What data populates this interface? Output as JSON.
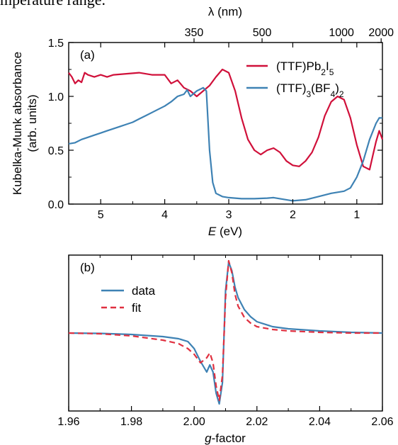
{
  "caption": "mperature range.",
  "chart_data": [
    {
      "panel": "(a)",
      "type": "line",
      "xlabel_var": "E",
      "xlabel_unit": " (eV)",
      "ylabel_line1": "Kubelka-Munk absorbance",
      "ylabel_line2": "(arb. units)",
      "top_axis_label": "λ (nm)",
      "xlim": [
        5.5,
        0.6
      ],
      "ylim": [
        0,
        1.5
      ],
      "x_ticks": [
        5,
        4,
        3,
        2,
        1
      ],
      "y_ticks": [
        "0.0",
        "0.5",
        "1.0",
        "1.5"
      ],
      "top_ticks": [
        350,
        500,
        1000,
        2000
      ],
      "legend_position": "top-right",
      "legend": [
        {
          "html": "(TTF)Pb<tspan baseline-shift=\"sub\" font-size=\"12\">2</tspan>I<tspan baseline-shift=\"sub\" font-size=\"12\">5</tspan>",
          "color": "#d0103a"
        },
        {
          "html": "(TTF)<tspan baseline-shift=\"sub\" font-size=\"12\">3</tspan>(BF<tspan baseline-shift=\"sub\" font-size=\"12\">4</tspan>)<tspan baseline-shift=\"sub\" font-size=\"12\">2</tspan>",
          "color": "#3e82b4"
        }
      ],
      "series": [
        {
          "color": "#d0103a",
          "x": [
            5.5,
            5.45,
            5.4,
            5.35,
            5.3,
            5.25,
            5.2,
            5.1,
            5.0,
            4.9,
            4.8,
            4.6,
            4.4,
            4.2,
            4.0,
            3.9,
            3.8,
            3.7,
            3.6,
            3.5,
            3.4,
            3.3,
            3.2,
            3.1,
            3.0,
            2.9,
            2.8,
            2.7,
            2.6,
            2.5,
            2.4,
            2.3,
            2.2,
            2.1,
            2.0,
            1.9,
            1.8,
            1.7,
            1.6,
            1.5,
            1.4,
            1.3,
            1.2,
            1.1,
            1.0,
            0.9,
            0.8,
            0.75,
            0.7,
            0.65,
            0.6
          ],
          "y": [
            1.22,
            1.18,
            1.12,
            1.15,
            1.13,
            1.22,
            1.2,
            1.18,
            1.2,
            1.18,
            1.2,
            1.21,
            1.22,
            1.2,
            1.2,
            1.12,
            1.15,
            1.08,
            1.05,
            1.0,
            1.05,
            1.1,
            1.18,
            1.25,
            1.22,
            1.05,
            0.8,
            0.6,
            0.5,
            0.46,
            0.5,
            0.52,
            0.48,
            0.4,
            0.36,
            0.35,
            0.4,
            0.48,
            0.62,
            0.82,
            0.95,
            1.0,
            0.97,
            0.8,
            0.55,
            0.35,
            0.32,
            0.45,
            0.58,
            0.68,
            0.6
          ]
        },
        {
          "color": "#3e82b4",
          "x": [
            5.5,
            5.4,
            5.3,
            5.2,
            5.1,
            5.0,
            4.9,
            4.8,
            4.7,
            4.6,
            4.5,
            4.4,
            4.3,
            4.2,
            4.1,
            4.0,
            3.9,
            3.8,
            3.7,
            3.65,
            3.6,
            3.5,
            3.4,
            3.35,
            3.3,
            3.25,
            3.2,
            3.1,
            3.0,
            2.8,
            2.6,
            2.4,
            2.3,
            2.2,
            2.0,
            1.8,
            1.6,
            1.4,
            1.2,
            1.1,
            1.0,
            0.9,
            0.8,
            0.7,
            0.65,
            0.6
          ],
          "y": [
            0.56,
            0.57,
            0.6,
            0.62,
            0.64,
            0.66,
            0.68,
            0.7,
            0.72,
            0.74,
            0.76,
            0.79,
            0.82,
            0.85,
            0.88,
            0.91,
            0.95,
            1.0,
            1.02,
            1.06,
            1.0,
            1.05,
            1.08,
            1.05,
            0.5,
            0.2,
            0.1,
            0.07,
            0.06,
            0.05,
            0.05,
            0.055,
            0.06,
            0.05,
            0.03,
            0.04,
            0.07,
            0.1,
            0.12,
            0.15,
            0.25,
            0.4,
            0.6,
            0.75,
            0.8,
            0.8
          ]
        }
      ]
    },
    {
      "panel": "(b)",
      "type": "line",
      "xlabel_var": "g",
      "xlabel_unit": "-factor",
      "xlim": [
        1.96,
        2.06
      ],
      "x_ticks": [
        "1.96",
        "1.98",
        "2.00",
        "2.02",
        "2.04",
        "2.06"
      ],
      "ylim": [
        -1.1,
        1.1
      ],
      "legend_position": "top-left",
      "legend": [
        {
          "text": "data",
          "color": "#3e82b4",
          "dash": false
        },
        {
          "text": "fit",
          "color": "#e03040",
          "dash": true
        }
      ],
      "series": [
        {
          "name": "data",
          "color": "#3e82b4",
          "dash": false,
          "x": [
            1.96,
            1.97,
            1.98,
            1.99,
            1.995,
            1.998,
            2.0,
            2.002,
            2.004,
            2.005,
            2.006,
            2.007,
            2.008,
            2.009,
            2.01,
            2.011,
            2.012,
            2.013,
            2.014,
            2.016,
            2.018,
            2.02,
            2.025,
            2.03,
            2.04,
            2.05,
            2.06
          ],
          "y": [
            0.0,
            -0.005,
            -0.02,
            -0.05,
            -0.08,
            -0.12,
            -0.22,
            -0.4,
            -0.55,
            -0.45,
            -0.55,
            -0.85,
            -1.0,
            -0.7,
            0.6,
            1.0,
            0.88,
            0.65,
            0.5,
            0.33,
            0.23,
            0.16,
            0.09,
            0.06,
            0.03,
            0.01,
            0.0
          ]
        },
        {
          "name": "fit",
          "color": "#e03040",
          "dash": true,
          "x": [
            1.96,
            1.97,
            1.98,
            1.99,
            1.995,
            1.998,
            2.0,
            2.002,
            2.004,
            2.005,
            2.006,
            2.007,
            2.008,
            2.009,
            2.01,
            2.011,
            2.012,
            2.013,
            2.014,
            2.016,
            2.018,
            2.02,
            2.025,
            2.03,
            2.04,
            2.05,
            2.06
          ],
          "y": [
            0.0,
            -0.01,
            -0.04,
            -0.1,
            -0.15,
            -0.22,
            -0.3,
            -0.42,
            -0.35,
            -0.28,
            -0.42,
            -0.75,
            -0.95,
            -0.6,
            0.5,
            1.02,
            0.85,
            0.55,
            0.38,
            0.22,
            0.14,
            0.09,
            0.05,
            0.03,
            0.01,
            0.0,
            0.0
          ]
        }
      ]
    }
  ]
}
